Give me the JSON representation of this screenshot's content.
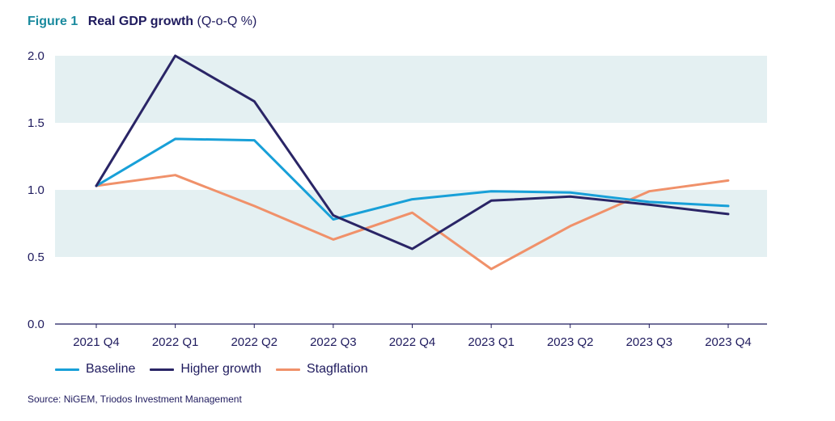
{
  "header": {
    "figure_label": "Figure 1",
    "title": "Real GDP growth",
    "unit": "(Q-o-Q %)"
  },
  "source": "Source: NiGEM, Triodos Investment Management",
  "colors": {
    "band": "#e4f0f2",
    "axis": "#1f1b5e",
    "text": "#1f1b5e"
  },
  "chart_data": {
    "type": "line",
    "title": "Real GDP growth",
    "xlabel": "",
    "ylabel": "",
    "categories": [
      "2021 Q4",
      "2022 Q1",
      "2022 Q2",
      "2022 Q3",
      "2022 Q4",
      "2023 Q1",
      "2023 Q2",
      "2023 Q3",
      "2023 Q4"
    ],
    "ylim": [
      0.0,
      2.0
    ],
    "yticks": [
      "0.0",
      "0.5",
      "1.0",
      "1.5",
      "2.0"
    ],
    "bands": [
      [
        0.5,
        1.0
      ],
      [
        1.5,
        2.0
      ]
    ],
    "legend_position": "bottom-left",
    "grid": false,
    "series": [
      {
        "name": "Baseline",
        "color": "#18a0d8",
        "values": [
          1.03,
          1.38,
          1.37,
          0.78,
          0.93,
          0.99,
          0.98,
          0.91,
          0.88
        ]
      },
      {
        "name": "Higher growth",
        "color": "#2a2566",
        "values": [
          1.03,
          2.0,
          1.66,
          0.81,
          0.56,
          0.92,
          0.95,
          0.89,
          0.82
        ]
      },
      {
        "name": "Stagflation",
        "color": "#f0916a",
        "values": [
          1.03,
          1.11,
          0.88,
          0.63,
          0.83,
          0.41,
          0.73,
          0.99,
          1.07
        ]
      }
    ]
  }
}
